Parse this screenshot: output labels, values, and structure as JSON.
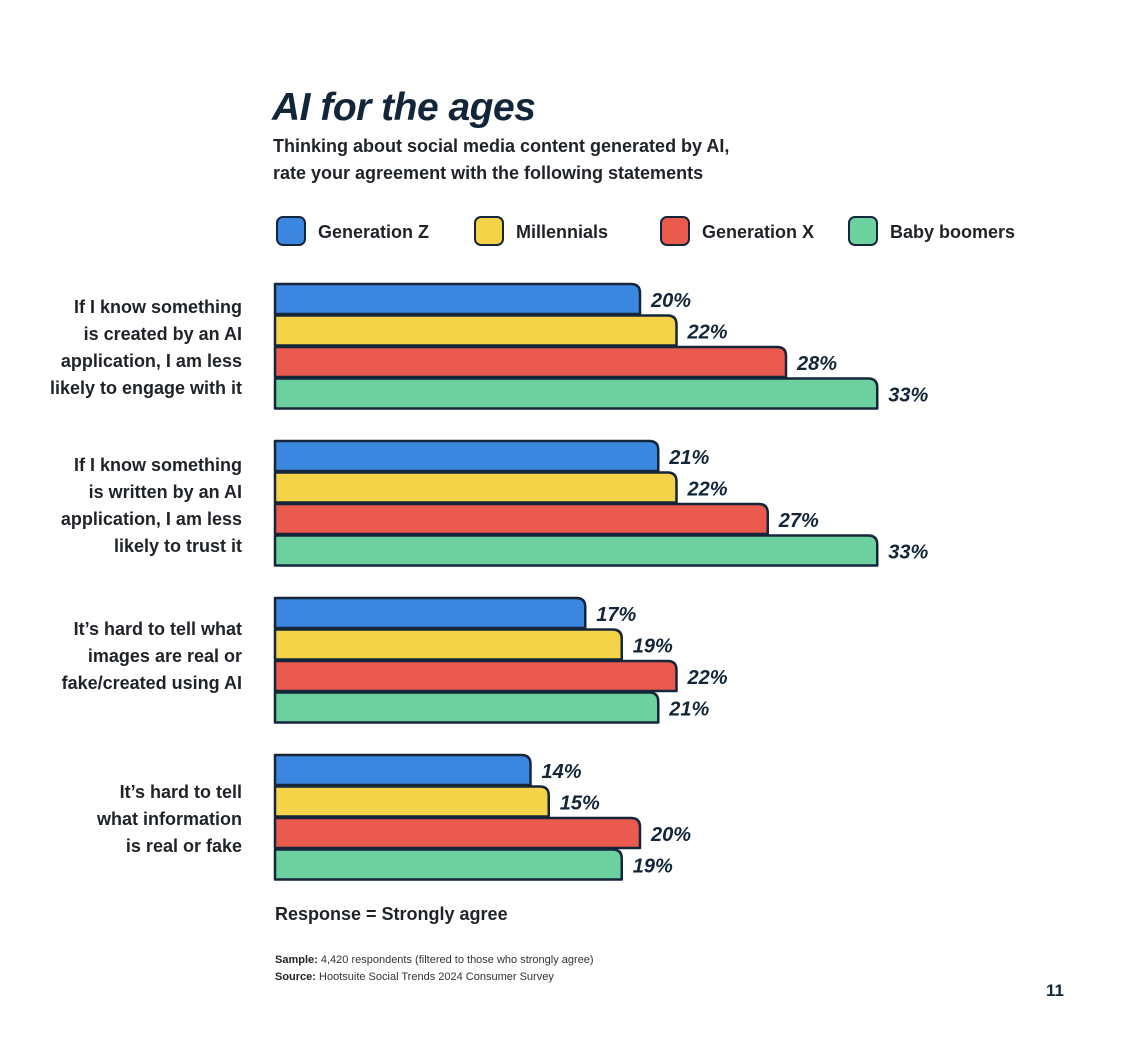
{
  "chart_data": {
    "type": "bar",
    "title": "AI for the ages",
    "subtitle_lines": [
      "Thinking about social media content generated by AI,",
      "rate your agreement with the following statements"
    ],
    "category_lines": [
      [
        "If I know something",
        "is created by an AI",
        "application, I am less",
        "likely to engage with it"
      ],
      [
        "If I know something",
        "is written by an AI",
        "application, I am less",
        "likely to trust it"
      ],
      [
        "It’s hard to tell what",
        "images are real or",
        "fake/created using AI"
      ],
      [
        "It’s hard to tell",
        "what information",
        "is real or fake"
      ]
    ],
    "series": [
      {
        "name": "Generation Z",
        "color": "#3b87e0",
        "values": [
          20,
          21,
          17,
          14
        ]
      },
      {
        "name": "Millennials",
        "color": "#f5d348",
        "values": [
          22,
          22,
          19,
          15
        ]
      },
      {
        "name": "Generation X",
        "color": "#ea5a4e",
        "values": [
          28,
          27,
          22,
          20
        ]
      },
      {
        "name": "Baby boomers",
        "color": "#6dd19f",
        "values": [
          33,
          33,
          21,
          19
        ]
      }
    ],
    "value_suffix": "%",
    "orientation": "horizontal",
    "legend_position": "top",
    "grid": false,
    "bar_outline_color": "#15263a",
    "label_color": "#132538"
  },
  "notes": {
    "response": "Response = Strongly agree",
    "sample_label": "Sample:",
    "sample_text": "4,420 respondents (filtered to those who strongly agree)",
    "source_label": "Source:",
    "source_text": "Hootsuite Social Trends 2024 Consumer Survey"
  },
  "page_number": "11"
}
